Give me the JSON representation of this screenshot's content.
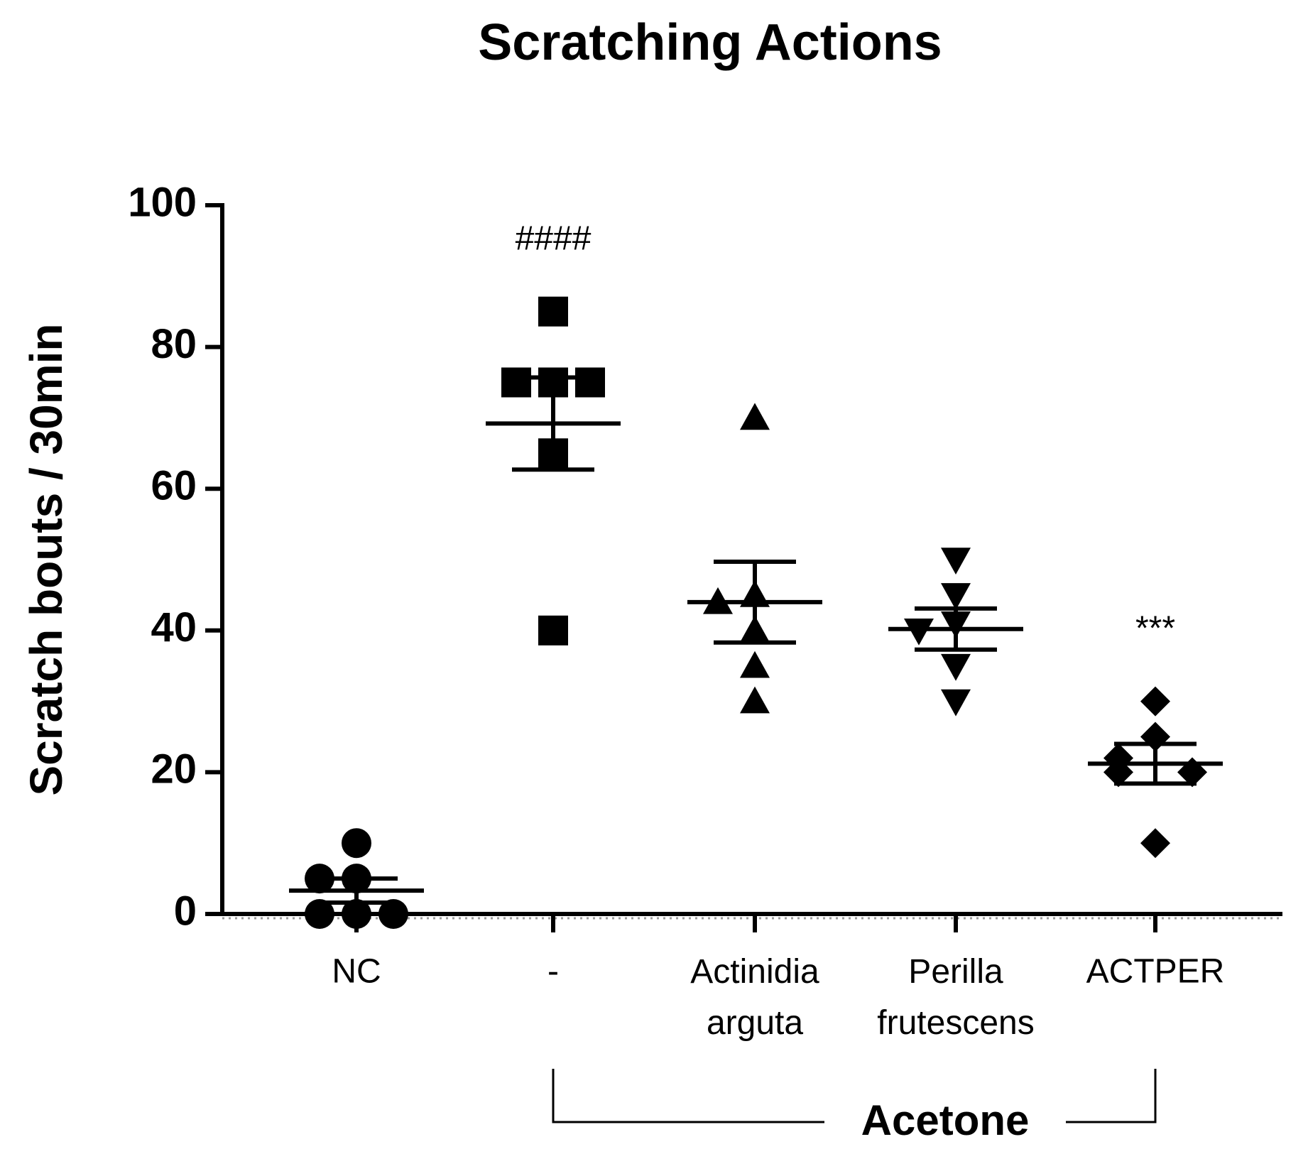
{
  "chart_data": {
    "type": "strip",
    "title": "Scratching Actions",
    "y_label": "Scratch bouts / 30min",
    "categories": [
      "NC",
      "-",
      "Actinidia arguta",
      "Perilla frutescens",
      "ACTPER"
    ],
    "markers": [
      "circle",
      "square",
      "triangle",
      "triangle-down",
      "diamond"
    ],
    "color": "#000000",
    "points": [
      [
        10,
        5,
        5,
        0,
        0,
        0
      ],
      [
        85,
        75,
        75,
        75,
        65,
        40
      ],
      [
        70,
        45,
        44,
        40,
        35,
        30
      ],
      [
        50,
        45,
        41,
        40,
        35,
        30
      ],
      [
        30,
        25,
        22,
        20,
        20,
        10
      ]
    ],
    "mean": [
      3.3,
      69.2,
      44,
      40.2,
      21.2
    ],
    "error": [
      1.7,
      6.5,
      5.7,
      2.9,
      2.8
    ],
    "significance": [
      null,
      "####",
      null,
      null,
      "***"
    ],
    "group_label": "Acetone",
    "ylim": [
      0,
      100
    ],
    "yticks": [
      0,
      20,
      40,
      60,
      80,
      100
    ]
  }
}
